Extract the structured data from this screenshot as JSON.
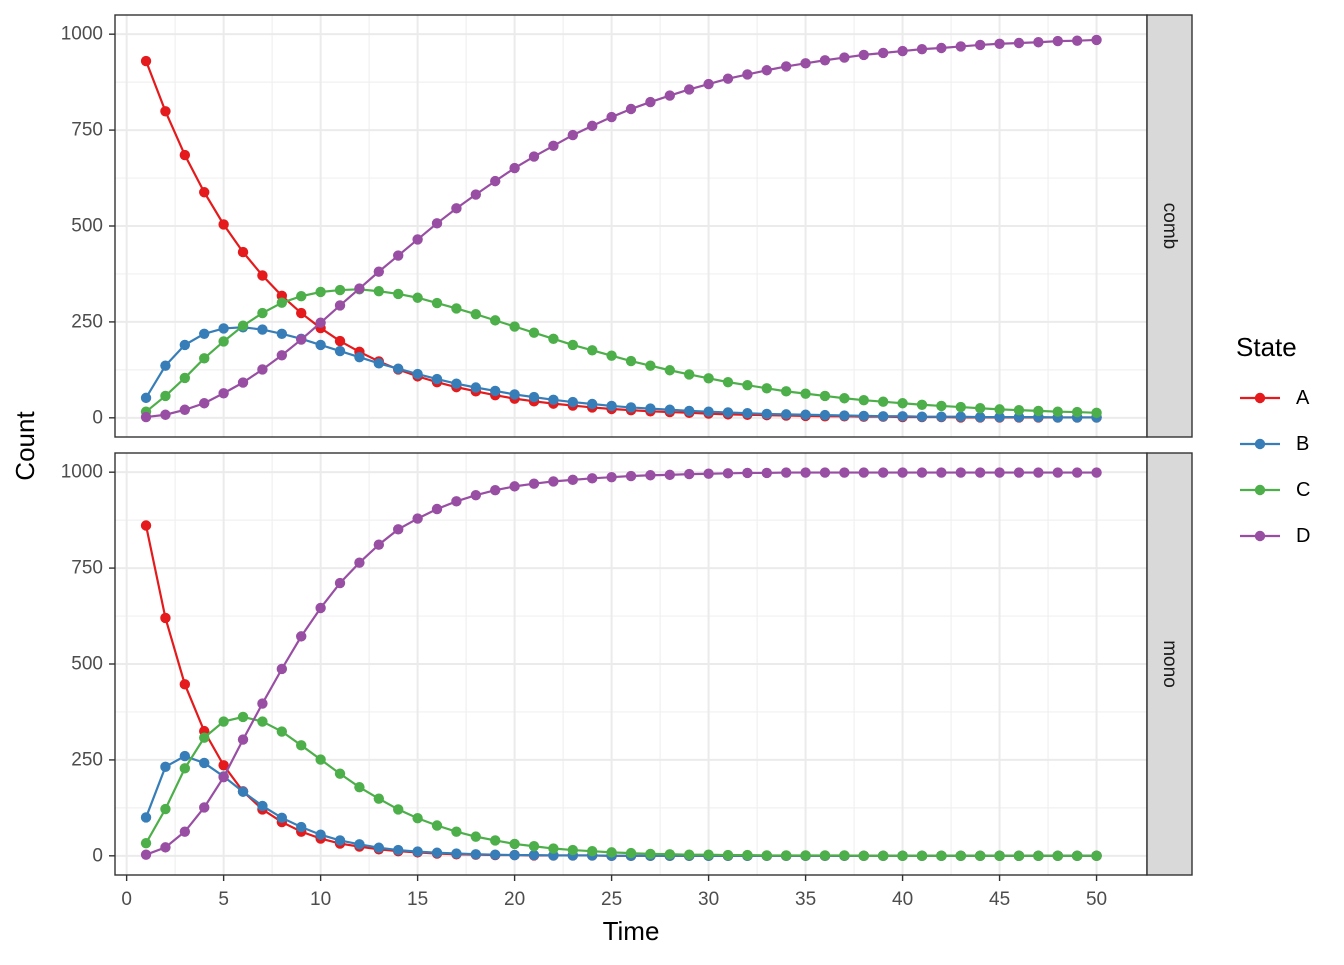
{
  "chart_data": {
    "type": "line",
    "xlabel": "Time",
    "ylabel": "Count",
    "x_ticks": [
      0,
      5,
      10,
      15,
      20,
      25,
      30,
      35,
      40,
      45,
      50
    ],
    "y_ticks": [
      0,
      250,
      500,
      750,
      1000
    ],
    "xlim": [
      -0.6,
      52.6
    ],
    "ylim": [
      -50,
      1050
    ],
    "grid": true,
    "legend": {
      "title": "State",
      "position": "right",
      "entries": [
        "A",
        "B",
        "C",
        "D"
      ]
    },
    "colors": {
      "A": "#E41A1C",
      "B": "#377EB8",
      "C": "#4DAF4A",
      "D": "#984EA3"
    },
    "x": [
      1,
      2,
      3,
      4,
      5,
      6,
      7,
      8,
      9,
      10,
      11,
      12,
      13,
      14,
      15,
      16,
      17,
      18,
      19,
      20,
      21,
      22,
      23,
      24,
      25,
      26,
      27,
      28,
      29,
      30,
      31,
      32,
      33,
      34,
      35,
      36,
      37,
      38,
      39,
      40,
      41,
      42,
      43,
      44,
      45,
      46,
      47,
      48,
      49,
      50
    ],
    "panels": [
      {
        "label": "comb",
        "series": [
          {
            "name": "A",
            "values": [
              930,
              799,
              685,
              588,
              504,
              432,
              371,
              318,
              273,
              234,
              200,
              172,
              147,
              126,
              108,
              93,
              80,
              69,
              59,
              50,
              43,
              37,
              32,
              27,
              23,
              20,
              17,
              15,
              13,
              11,
              9,
              8,
              7,
              6,
              5,
              4,
              4,
              3,
              3,
              2,
              2,
              2,
              1,
              1,
              1,
              1,
              1,
              1,
              1,
              1
            ]
          },
          {
            "name": "B",
            "values": [
              52,
              136,
              190,
              219,
              233,
              236,
              230,
              219,
              206,
              190,
              174,
              158,
              142,
              128,
              114,
              101,
              89,
              79,
              70,
              61,
              54,
              47,
              41,
              36,
              31,
              27,
              24,
              21,
              18,
              16,
              14,
              12,
              10,
              9,
              8,
              7,
              6,
              5,
              4,
              4,
              3,
              3,
              3,
              2,
              2,
              2,
              2,
              1,
              1,
              1
            ]
          },
          {
            "name": "C",
            "values": [
              16,
              57,
              104,
              155,
              199,
              240,
              273,
              300,
              317,
              328,
              333,
              335,
              330,
              323,
              313,
              299,
              285,
              270,
              254,
              238,
              222,
              206,
              190,
              176,
              162,
              148,
              136,
              124,
              113,
              103,
              93,
              85,
              77,
              69,
              63,
              57,
              51,
              46,
              42,
              38,
              34,
              31,
              28,
              25,
              22,
              20,
              18,
              16,
              15,
              13
            ]
          },
          {
            "name": "D",
            "values": [
              2,
              8,
              21,
              38,
              64,
              92,
              126,
              163,
              204,
              248,
              293,
              337,
              381,
              423,
              465,
              507,
              546,
              582,
              617,
              651,
              681,
              709,
              737,
              761,
              784,
              805,
              823,
              840,
              856,
              870,
              884,
              895,
              906,
              916,
              924,
              932,
              939,
              946,
              951,
              956,
              961,
              964,
              968,
              972,
              975,
              977,
              979,
              982,
              983,
              985
            ]
          }
        ]
      },
      {
        "label": "mono",
        "series": [
          {
            "name": "A",
            "values": [
              861,
              620,
              447,
              325,
              236,
              168,
              121,
              88,
              63,
              45,
              32,
              24,
              17,
              12,
              9,
              6,
              4,
              3,
              2,
              2,
              1,
              1,
              1,
              1,
              0,
              0,
              0,
              0,
              0,
              0,
              0,
              0,
              0,
              0,
              0,
              0,
              0,
              0,
              0,
              0,
              0,
              0,
              0,
              0,
              0,
              0,
              0,
              0,
              0,
              0
            ]
          },
          {
            "name": "B",
            "values": [
              100,
              232,
              260,
              242,
              207,
              167,
              130,
              99,
              75,
              55,
              40,
              30,
              21,
              15,
              11,
              8,
              6,
              4,
              3,
              2,
              2,
              1,
              1,
              1,
              0,
              0,
              0,
              0,
              0,
              0,
              0,
              0,
              0,
              0,
              0,
              0,
              0,
              0,
              0,
              0,
              0,
              0,
              0,
              0,
              0,
              0,
              0,
              0,
              0,
              0
            ]
          },
          {
            "name": "C",
            "values": [
              33,
              122,
              228,
              308,
              350,
              362,
              350,
              324,
              288,
              251,
              214,
              179,
              149,
              121,
              98,
              79,
              63,
              50,
              40,
              31,
              25,
              19,
              15,
              12,
              9,
              7,
              5,
              4,
              3,
              3,
              2,
              2,
              1,
              1,
              1,
              1,
              1,
              0,
              0,
              0,
              0,
              0,
              0,
              0,
              0,
              0,
              0,
              0,
              0,
              0
            ]
          },
          {
            "name": "D",
            "values": [
              3,
              22,
              63,
              126,
              205,
              303,
              397,
              487,
              572,
              646,
              711,
              764,
              811,
              851,
              879,
              904,
              924,
              940,
              953,
              963,
              970,
              976,
              980,
              984,
              987,
              990,
              992,
              993,
              995,
              996,
              997,
              998,
              998,
              999,
              999,
              999,
              999,
              999,
              999,
              999,
              999,
              999,
              999,
              999,
              999,
              999,
              999,
              999,
              999,
              999
            ]
          }
        ]
      }
    ]
  }
}
